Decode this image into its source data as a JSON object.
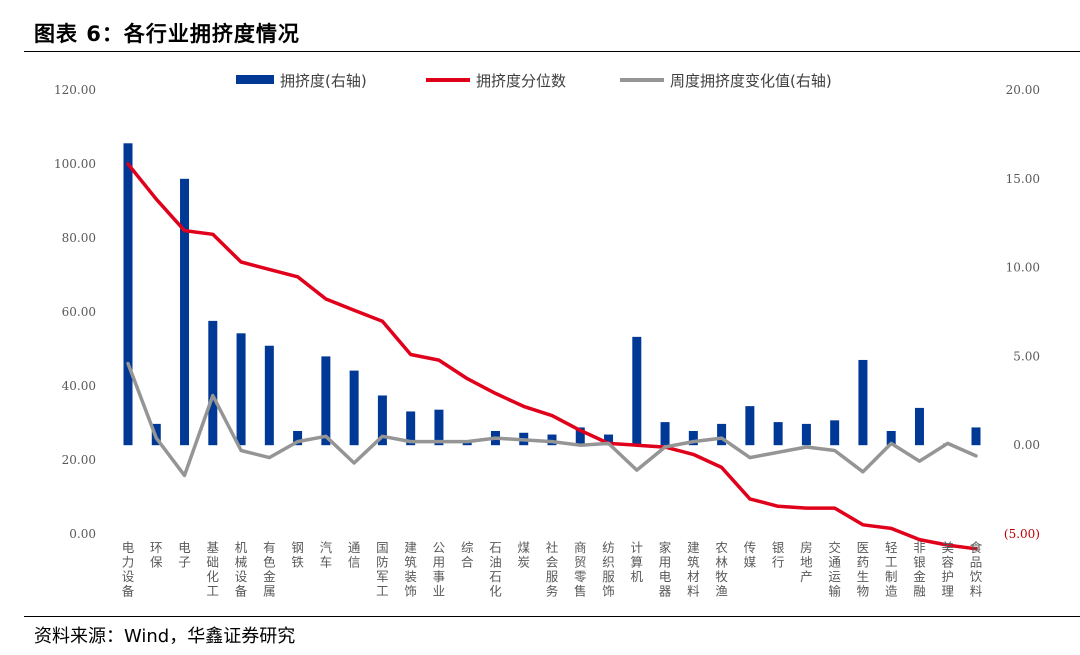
{
  "header": {
    "title": "图表 6：各行业拥挤度情况"
  },
  "footer": {
    "source": "资料来源：Wind，华鑫证券研究"
  },
  "chart_data": {
    "type": "bar",
    "categories": [
      "电力设备",
      "环保",
      "电子",
      "基础化工",
      "机械设备",
      "有色金属",
      "钢铁",
      "汽车",
      "通信",
      "国防军工",
      "建筑装饰",
      "公用事业",
      "综合",
      "石油石化",
      "煤炭",
      "社会服务",
      "商贸零售",
      "纺织服饰",
      "计算机",
      "家用电器",
      "建筑材料",
      "农林牧渔",
      "传媒",
      "银行",
      "房地产",
      "交通运输",
      "医药生物",
      "轻工制造",
      "非银金融",
      "美容护理",
      "食品饮料"
    ],
    "left_axis": {
      "ylim": [
        0,
        120
      ],
      "ticks": [
        "0.00",
        "20.00",
        "40.00",
        "60.00",
        "80.00",
        "100.00",
        "120.00"
      ]
    },
    "right_axis": {
      "ylim": [
        -5,
        20
      ],
      "ticks": [
        "(5.00)",
        "0.00",
        "5.00",
        "10.00",
        "15.00",
        "20.00"
      ]
    },
    "series": [
      {
        "name": "拥挤度(右轴)",
        "type": "bar",
        "axis": "right",
        "color": "#003896",
        "values": [
          17.0,
          1.2,
          15.0,
          7.0,
          6.3,
          5.6,
          0.8,
          5.0,
          4.2,
          2.8,
          1.9,
          2.0,
          0.2,
          0.8,
          0.7,
          0.6,
          1.0,
          0.6,
          6.1,
          1.3,
          0.8,
          1.2,
          2.2,
          1.3,
          1.2,
          1.4,
          4.8,
          0.8,
          2.1,
          0.1,
          1.0
        ]
      },
      {
        "name": "拥挤度分位数",
        "type": "line",
        "axis": "left",
        "color": "#e0001b",
        "values": [
          100.0,
          90.5,
          82.0,
          81.0,
          73.5,
          71.5,
          69.5,
          63.5,
          60.5,
          57.5,
          48.5,
          47.0,
          42.0,
          38.0,
          34.5,
          32.0,
          28.0,
          24.5,
          24.0,
          23.5,
          21.5,
          18.0,
          9.5,
          7.5,
          7.0,
          7.0,
          2.5,
          1.5,
          -1.5,
          -3.0,
          -4.0
        ]
      },
      {
        "name": "周度拥挤度变化值(右轴)",
        "type": "line",
        "axis": "right",
        "color": "#959595",
        "values": [
          4.6,
          0.4,
          -1.7,
          2.8,
          -0.3,
          -0.7,
          0.2,
          0.5,
          -1.0,
          0.5,
          0.2,
          0.2,
          0.2,
          0.4,
          0.3,
          0.2,
          0.0,
          0.1,
          -1.4,
          -0.1,
          0.2,
          0.4,
          -0.7,
          -0.4,
          -0.1,
          -0.3,
          -1.5,
          0.1,
          -0.9,
          0.1,
          -0.6
        ]
      }
    ],
    "legend_position": "top",
    "grid": false
  }
}
